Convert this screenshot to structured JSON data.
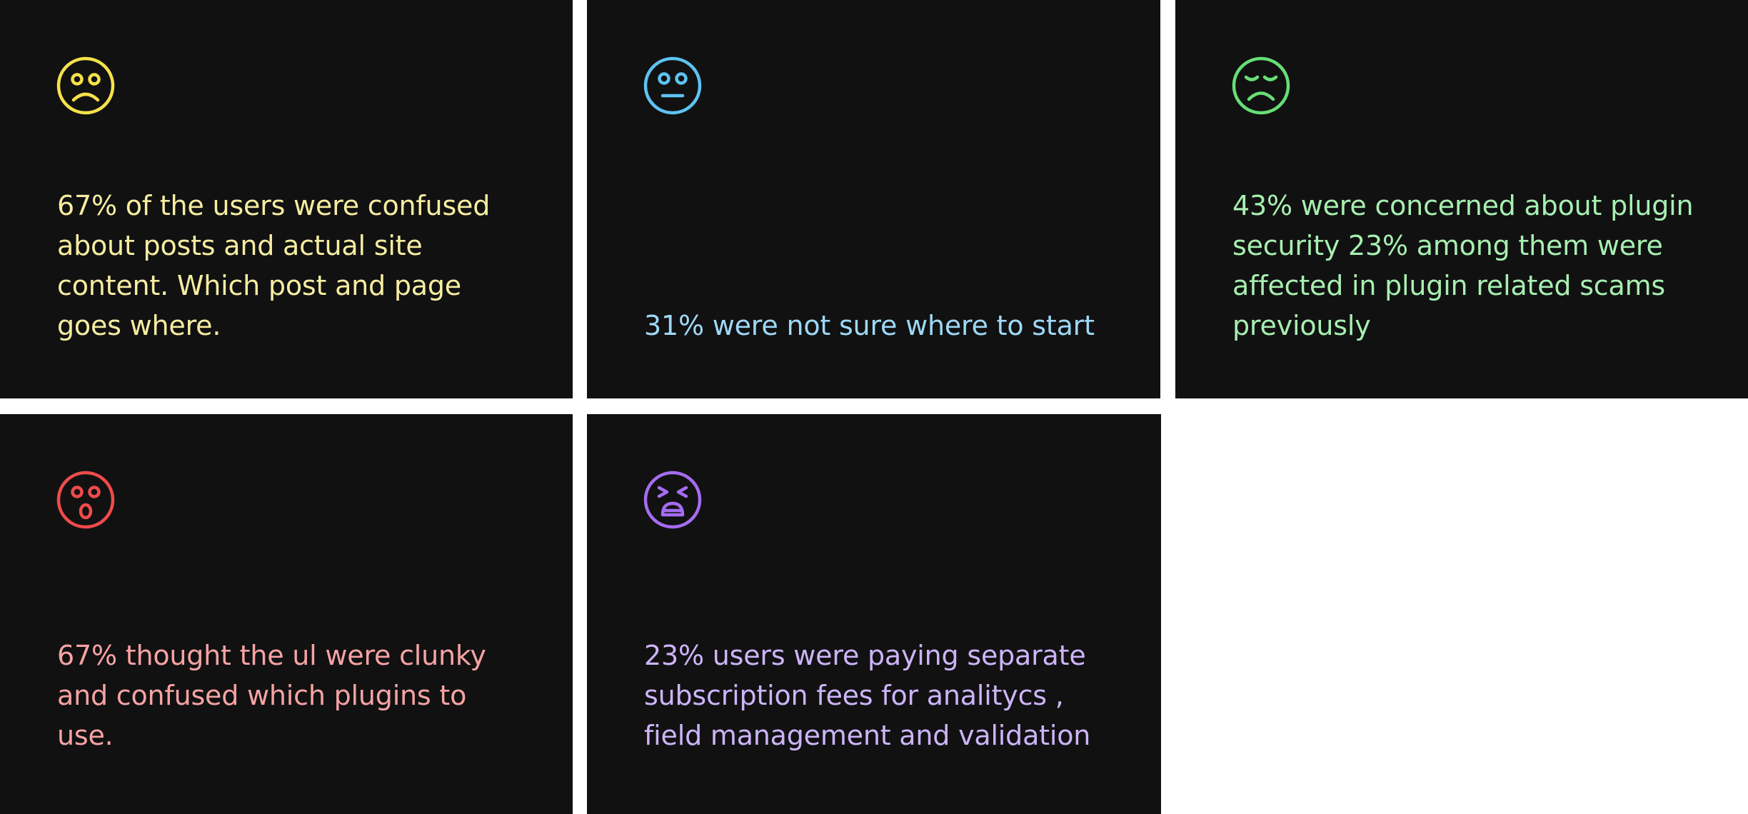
{
  "cards": [
    {
      "icon": "frowning-face-icon",
      "icon_color": "#f5e24a",
      "text_color": "#f6eda0",
      "text": "67% of the users were confused about posts and actual site content. Which post and page goes where."
    },
    {
      "icon": "neutral-face-icon",
      "icon_color": "#5ec3f2",
      "text_color": "#9fd8f6",
      "text": "31% were not sure where to start"
    },
    {
      "icon": "pensive-face-icon",
      "icon_color": "#66df74",
      "text_color": "#a7efb0",
      "text": "43% were concerned about plugin security 23% among them were affected in plugin related scams previously"
    },
    {
      "icon": "astonished-face-icon",
      "icon_color": "#ef4b4b",
      "text_color": "#f7a3a3",
      "text": "67% thought the ul were clunky and confused which plugins to use."
    },
    {
      "icon": "tired-face-icon",
      "icon_color": "#a66cf2",
      "text_color": "#cdb4f8",
      "text": "23% users were paying separate subscription fees for analitycs , field management and validation"
    }
  ]
}
